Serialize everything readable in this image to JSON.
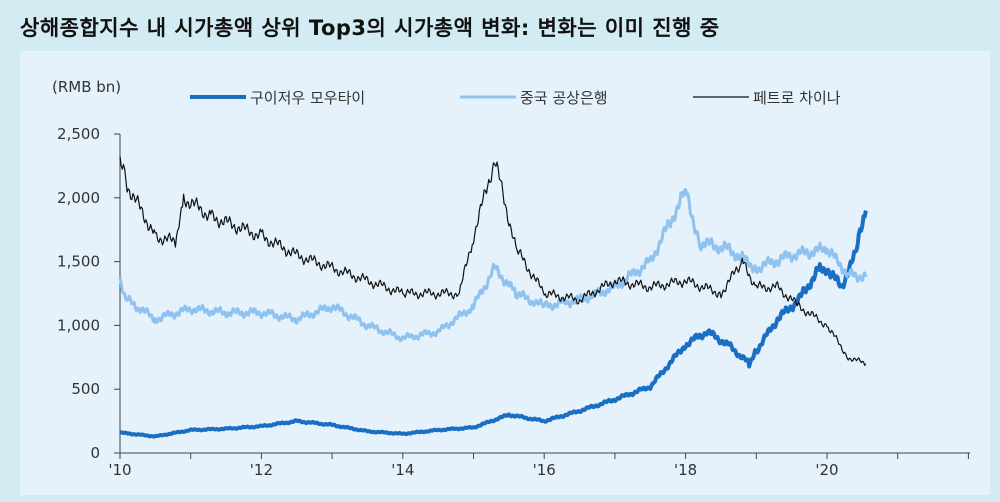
{
  "title": "상해종합지수 내 시가총액 상위 Top3의 시가총액 변화: 변화는 이미 진행 중",
  "chart_data": {
    "type": "line",
    "title": "상해종합지수 내 시가총액 상위 Top3의 시가총액 변화: 변화는 이미 진행 중",
    "ylabel": "(RMB bn)",
    "xlabel": "",
    "ylim": [
      0,
      2500
    ],
    "xlim": [
      2010,
      2022
    ],
    "yticks": [
      0,
      500,
      1000,
      1500,
      2000,
      2500
    ],
    "ytick_labels": [
      "0",
      "500",
      "1,000",
      "1,500",
      "2,000",
      "2,500"
    ],
    "xticks": [
      2010,
      2012,
      2014,
      2016,
      2018,
      2020
    ],
    "xtick_labels": [
      "'10",
      "'12",
      "'14",
      "'16",
      "'18",
      "'20"
    ],
    "legend": "top",
    "series": [
      {
        "name": "구이저우 모우타이",
        "color": "#1a6fc4",
        "width": 4,
        "x": [
          2010,
          2010.5,
          2011,
          2011.5,
          2012,
          2012.5,
          2013,
          2013.5,
          2014,
          2014.5,
          2015,
          2015.5,
          2016,
          2016.5,
          2017,
          2017.5,
          2018,
          2018.3,
          2018.6,
          2018.9,
          2019,
          2019.3,
          2019.6,
          2019.9,
          2020,
          2020.2,
          2020.4,
          2020.55
        ],
        "values": [
          160,
          130,
          180,
          190,
          210,
          250,
          220,
          170,
          150,
          180,
          200,
          300,
          250,
          330,
          420,
          520,
          850,
          950,
          850,
          700,
          800,
          1050,
          1200,
          1450,
          1450,
          1300,
          1550,
          1900
        ]
      },
      {
        "name": "중국 공상은행",
        "color": "#8fc2ee",
        "width": 3,
        "x": [
          2010,
          2010.1,
          2010.5,
          2011,
          2011.5,
          2012,
          2012.5,
          2013,
          2013.5,
          2014,
          2014.5,
          2015,
          2015.3,
          2015.6,
          2016,
          2016.5,
          2017,
          2017.5,
          2018,
          2018.2,
          2018.6,
          2019,
          2019.5,
          2020,
          2020.3,
          2020.55
        ],
        "values": [
          1350,
          1200,
          1050,
          1130,
          1100,
          1100,
          1050,
          1150,
          1000,
          900,
          950,
          1150,
          1450,
          1250,
          1150,
          1200,
          1300,
          1500,
          2050,
          1650,
          1600,
          1450,
          1550,
          1600,
          1400,
          1380
        ]
      },
      {
        "name": "페트로 차이나",
        "color": "#111111",
        "width": 1.2,
        "x": [
          2010,
          2010.1,
          2010.5,
          2010.8,
          2010.9,
          2011.3,
          2012,
          2012.5,
          2013,
          2013.5,
          2014,
          2014.8,
          2015,
          2015.3,
          2015.6,
          2016,
          2016.5,
          2017,
          2017.5,
          2018,
          2018.5,
          2018.8,
          2019,
          2019.3,
          2019.6,
          2020,
          2020.3,
          2020.55
        ],
        "values": [
          2300,
          2100,
          1700,
          1650,
          2000,
          1850,
          1700,
          1550,
          1450,
          1350,
          1250,
          1250,
          1700,
          2300,
          1600,
          1250,
          1200,
          1350,
          1300,
          1350,
          1250,
          1500,
          1300,
          1300,
          1150,
          1000,
          750,
          700
        ]
      }
    ]
  }
}
